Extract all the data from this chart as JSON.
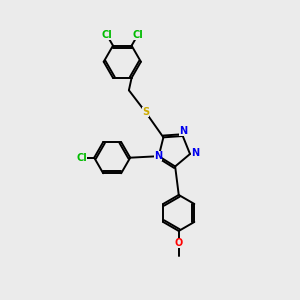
{
  "background_color": "#ebebeb",
  "bond_color": "#000000",
  "atom_colors": {
    "N": "#0000ee",
    "S": "#ccaa00",
    "Cl": "#00bb00",
    "O": "#ff0000",
    "C": "#000000"
  },
  "font_size": 7.0,
  "line_width": 1.4
}
